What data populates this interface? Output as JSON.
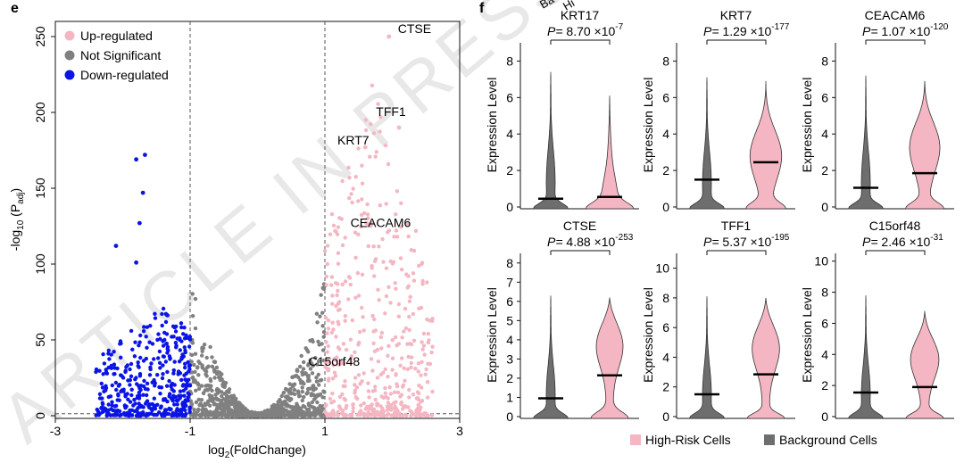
{
  "watermark": "ARTICLE IN PRESS",
  "colors": {
    "up": "#F4B6C2",
    "ns": "#808080",
    "down": "#0A14E6",
    "axis": "#111111",
    "violin_bg": "#6E6E6E",
    "violin_hr": "#F4B6C2"
  },
  "chart_data": [
    {
      "type": "scatter",
      "panel_label": "e",
      "title": "",
      "xlabel": "log2(FoldChange)",
      "ylabel": "-log10(Padj)",
      "xlim": [
        -3,
        3
      ],
      "ylim": [
        0,
        260
      ],
      "xticks": [
        "-3",
        "-1",
        "1",
        "3"
      ],
      "yticks": [
        "0",
        "50",
        "100",
        "150",
        "200",
        "250"
      ],
      "thresholds": {
        "x": [
          -1,
          1
        ],
        "y": 1.3
      },
      "legend": [
        {
          "label": "Up-regulated",
          "color": "#F4B6C2"
        },
        {
          "label": "Not Significant",
          "color": "#808080"
        },
        {
          "label": "Down-regulated",
          "color": "#0A14E6"
        }
      ],
      "legend_position": "top-left",
      "annotations": [
        {
          "label": "CTSE",
          "x": 1.95,
          "y": 250
        },
        {
          "label": "TFF1",
          "x": 2.05,
          "y": 193
        },
        {
          "label": "KRT7",
          "x": 1.53,
          "y": 173
        },
        {
          "label": "CEACAM6",
          "x": 1.75,
          "y": 121
        },
        {
          "label": "C15orf48",
          "x": 1.1,
          "y": 27
        }
      ],
      "highlight_points": [
        {
          "x": 1.95,
          "y": 250
        },
        {
          "x": 2.1,
          "y": 190
        },
        {
          "x": 1.6,
          "y": 177
        },
        {
          "x": 1.7,
          "y": 127
        },
        {
          "x": 1.05,
          "y": 30
        },
        {
          "x": -1.67,
          "y": 172
        },
        {
          "x": -1.8,
          "y": 169
        },
        {
          "x": -1.7,
          "y": 147
        },
        {
          "x": -1.75,
          "y": 127
        },
        {
          "x": -2.1,
          "y": 112
        },
        {
          "x": -1.8,
          "y": 101
        }
      ],
      "clouds": {
        "up": {
          "count": 480,
          "x_range": [
            1,
            2.6
          ],
          "y_max": 215
        },
        "ns": {
          "count": 900,
          "x_range": [
            -1,
            1
          ],
          "y_max": 90
        },
        "down": {
          "count": 420,
          "x_range": [
            -2.4,
            -1
          ],
          "y_max": 65
        }
      }
    },
    {
      "type": "violin",
      "panel_label": "f",
      "series_labels": [
        "Background Cells",
        "High-Risk Cells"
      ],
      "legend": [
        {
          "label": "High-Risk Cells",
          "color": "#F4B6C2"
        },
        {
          "label": "Background Cells",
          "color": "#6E6E6E"
        }
      ],
      "legend_position": "bottom",
      "ylabel": "Expression Level",
      "panels": [
        {
          "gene": "KRT17",
          "p_text": "P=",
          "p_mant": "8.70",
          "p_times": "×10",
          "p_exp": "-7",
          "ylim": [
            0,
            9
          ],
          "yticks": [
            "0",
            "2",
            "4",
            "6",
            "8"
          ],
          "bg_median": 0.45,
          "hr_median": 0.55,
          "bg_max": 7.4,
          "hr_max": 6.1,
          "hr_bulge": 0.35
        },
        {
          "gene": "KRT7",
          "p_text": "P=",
          "p_mant": "1.29",
          "p_times": "×10",
          "p_exp": "-177",
          "ylim": [
            0,
            9
          ],
          "yticks": [
            "0",
            "2",
            "4",
            "6",
            "8"
          ],
          "bg_median": 1.5,
          "hr_median": 2.45,
          "bg_max": 7.1,
          "hr_max": 6.9,
          "hr_bulge": 3.0
        },
        {
          "gene": "CEACAM6",
          "p_text": "P=",
          "p_mant": "1.07",
          "p_times": "×10",
          "p_exp": "-120",
          "ylim": [
            0,
            9
          ],
          "yticks": [
            "0",
            "2",
            "4",
            "6",
            "8"
          ],
          "bg_median": 1.05,
          "hr_median": 1.85,
          "bg_max": 7.2,
          "hr_max": 6.9,
          "hr_bulge": 3.5
        },
        {
          "gene": "CTSE",
          "p_text": "P=",
          "p_mant": "4.88",
          "p_times": "×10",
          "p_exp": "-253",
          "ylim": [
            0,
            8.5
          ],
          "yticks": [
            "0",
            "1",
            "2",
            "3",
            "4",
            "5",
            "6",
            "7",
            "8"
          ],
          "bg_median": 0.95,
          "hr_median": 2.15,
          "bg_max": 6.3,
          "hr_max": 6.2,
          "hr_bulge": 4.0
        },
        {
          "gene": "TFF1",
          "p_text": "P=",
          "p_mant": "5.37",
          "p_times": "×10",
          "p_exp": "-195",
          "ylim": [
            0,
            11
          ],
          "yticks": [
            "0",
            "2",
            "4",
            "6",
            "8",
            "10"
          ],
          "bg_median": 1.5,
          "hr_median": 2.85,
          "bg_max": 8.1,
          "hr_max": 8.0,
          "hr_bulge": 5.0
        },
        {
          "gene": "C15orf48",
          "p_text": "P=",
          "p_mant": "2.46",
          "p_times": "×10",
          "p_exp": "-31",
          "ylim": [
            0,
            10.5
          ],
          "yticks": [
            "0",
            "2",
            "4",
            "6",
            "8",
            "10"
          ],
          "bg_median": 1.55,
          "hr_median": 1.9,
          "bg_max": 7.8,
          "hr_max": 6.8,
          "hr_bulge": 4.0
        }
      ]
    }
  ]
}
